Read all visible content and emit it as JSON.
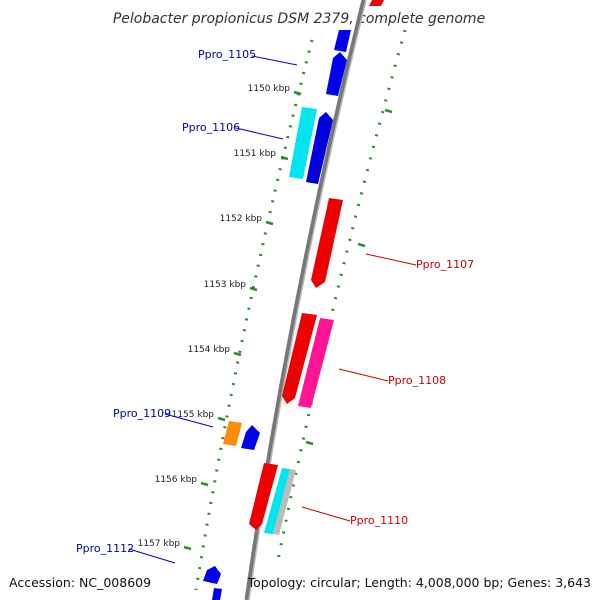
{
  "title": "Pelobacter propionicus DSM 2379, complete genome",
  "footer": {
    "accession": "Accession: NC_008609",
    "summary": "Topology: circular; Length: 4,008,000 bp; Genes: 3,643"
  },
  "colors": {
    "backbone": "#888888",
    "tick": "#2e8b2e",
    "forward_label": "#cc0000",
    "reverse_label": "#0000aa"
  },
  "ticks": [
    {
      "kbp": 1150,
      "label": "1150 kbp"
    },
    {
      "kbp": 1151,
      "label": "1151 kbp"
    },
    {
      "kbp": 1152,
      "label": "1152 kbp"
    },
    {
      "kbp": 1153,
      "label": "1153 kbp"
    },
    {
      "kbp": 1154,
      "label": "1154 kbp"
    },
    {
      "kbp": 1155,
      "label": "1155 kbp"
    },
    {
      "kbp": 1156,
      "label": "1156 kbp"
    },
    {
      "kbp": 1157,
      "label": "1157 kbp"
    }
  ],
  "gene_labels": [
    {
      "text": "Ppro_1105",
      "strand": "reverse"
    },
    {
      "text": "Ppro_1106",
      "strand": "reverse"
    },
    {
      "text": "Ppro_1107",
      "strand": "forward"
    },
    {
      "text": "Ppro_1108",
      "strand": "forward"
    },
    {
      "text": "Ppro_1109",
      "strand": "reverse"
    },
    {
      "text": "Ppro_1110",
      "strand": "forward"
    },
    {
      "text": "Ppro_1112",
      "strand": "reverse"
    }
  ]
}
